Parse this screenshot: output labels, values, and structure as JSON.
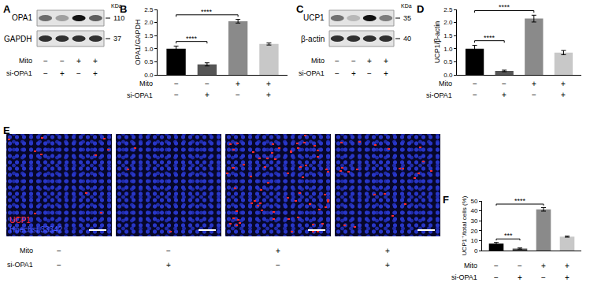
{
  "conditions": {
    "rows": [
      {
        "label": "Mito",
        "marks": [
          "−",
          "−",
          "+",
          "+"
        ]
      },
      {
        "label": "si-OPA1",
        "marks": [
          "−",
          "+",
          "−",
          "+"
        ]
      }
    ]
  },
  "blots": [
    {
      "panel": "A",
      "unit": "KDa",
      "bands": [
        {
          "label": "OPA1",
          "marker": 110
        },
        {
          "label": "GAPDH",
          "marker": 37
        }
      ]
    },
    {
      "panel": "C",
      "unit": "KDa",
      "bands": [
        {
          "label": "UCP1",
          "marker": 35
        },
        {
          "label": "β-actin",
          "marker": 40
        }
      ]
    }
  ],
  "micrographs": {
    "panel": "E",
    "stains": [
      {
        "label": "UCP1",
        "color": "#ff2a2a"
      },
      {
        "label": "Hoechst 33342",
        "color": "#4a5cff"
      }
    ]
  },
  "chart_data": [
    {
      "panel": "B",
      "type": "bar",
      "y_label": "OPA1/GAPDH",
      "categories": [
        null,
        null,
        null,
        null
      ],
      "values": [
        1.0,
        0.4,
        2.05,
        1.18
      ],
      "errors": [
        0.1,
        0.06,
        0.07,
        0.04
      ],
      "colors": [
        "#000000",
        "#555555",
        "#8a8a8a",
        "#c8c8c8"
      ],
      "ylim": [
        0,
        2.5
      ],
      "yticks": [
        {
          "value": 0,
          "label": "0.0"
        },
        0.5,
        {
          "value": 1,
          "label": "1.0"
        },
        1.5,
        {
          "value": 2,
          "label": "2.0"
        },
        2.5
      ],
      "grid": false,
      "significance": [
        {
          "pair": [
            0,
            1
          ],
          "label": "****"
        },
        {
          "pair": [
            0,
            2
          ],
          "label": "****"
        }
      ]
    },
    {
      "panel": "D",
      "type": "bar",
      "y_label": "UCP1/β-actin",
      "categories": [
        null,
        null,
        null,
        null
      ],
      "values": [
        1.0,
        0.15,
        2.15,
        0.85
      ],
      "errors": [
        0.13,
        0.03,
        0.13,
        0.08
      ],
      "colors": [
        "#000000",
        "#555555",
        "#8a8a8a",
        "#c8c8c8"
      ],
      "ylim": [
        0,
        2.5
      ],
      "yticks": [
        {
          "value": 0,
          "label": "0.0"
        },
        0.5,
        {
          "value": 1,
          "label": "1.0"
        },
        1.5,
        {
          "value": 2,
          "label": "2.0"
        },
        2.5
      ],
      "grid": false,
      "significance": [
        {
          "pair": [
            0,
            1
          ],
          "label": "****"
        },
        {
          "pair": [
            0,
            2
          ],
          "label": "****"
        }
      ]
    },
    {
      "panel": "F",
      "type": "bar",
      "y_label": "UCP1⁺/total cells (%)",
      "categories": [
        null,
        null,
        null,
        null
      ],
      "values": [
        7,
        2,
        41.5,
        14
      ],
      "errors": [
        1.2,
        0.6,
        1.8,
        0.5
      ],
      "colors": [
        "#000000",
        "#555555",
        "#8a8a8a",
        "#c8c8c8"
      ],
      "ylim": [
        0,
        50
      ],
      "yticks": [
        0,
        10,
        20,
        30,
        40,
        50
      ],
      "grid": false,
      "significance": [
        {
          "pair": [
            0,
            1
          ],
          "label": "***"
        },
        {
          "pair": [
            0,
            2
          ],
          "label": "****"
        }
      ]
    }
  ]
}
